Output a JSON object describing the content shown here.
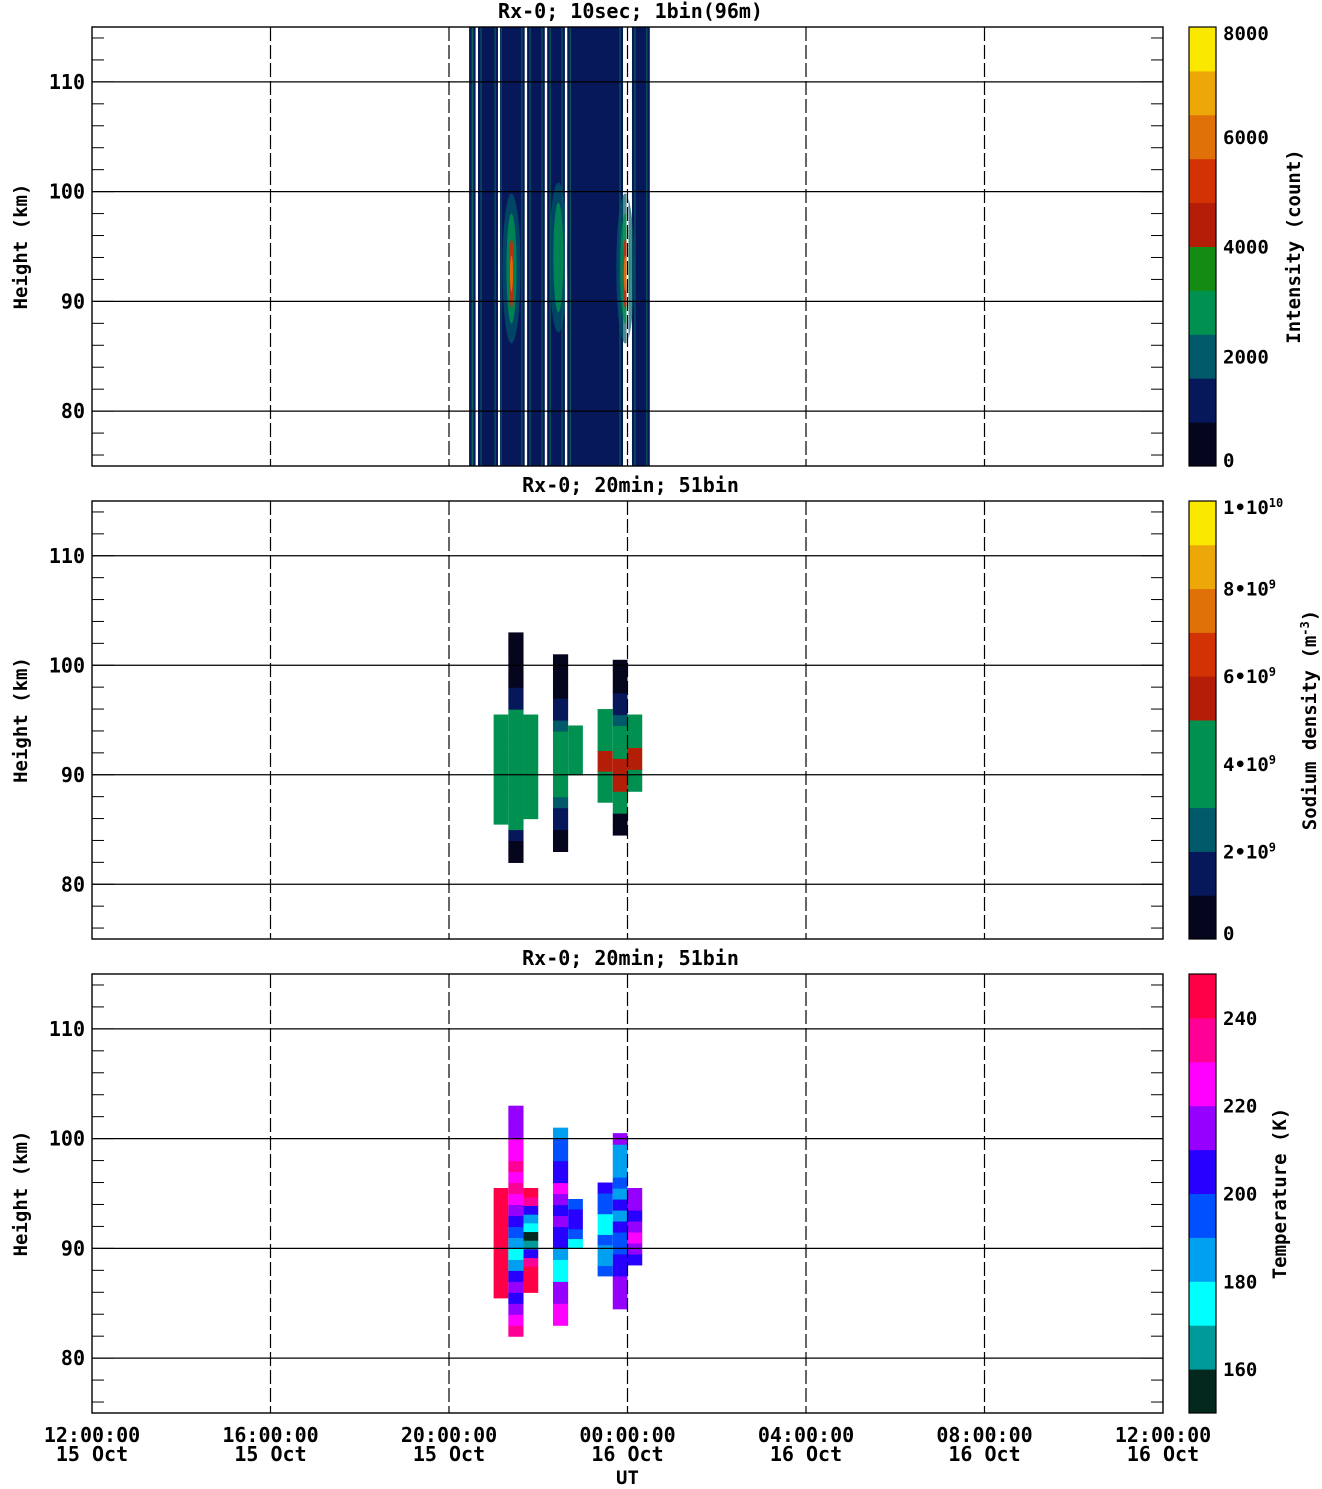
{
  "x_ticks": [
    {
      "time": "12:00:00",
      "date": "15 Oct"
    },
    {
      "time": "16:00:00",
      "date": "15 Oct"
    },
    {
      "time": "20:00:00",
      "date": "15 Oct"
    },
    {
      "time": "00:00:00",
      "date": "16 Oct"
    },
    {
      "time": "04:00:00",
      "date": "16 Oct"
    },
    {
      "time": "08:00:00",
      "date": "16 Oct"
    },
    {
      "time": "12:00:00",
      "date": "16 Oct"
    }
  ],
  "x_label": "UT",
  "chart_data": [
    {
      "type": "heatmap",
      "title": "Rx-0; 10sec; 1bin(96m)",
      "ylabel": "Height (km)",
      "xlim": [
        "15 Oct 12:00:00",
        "16 Oct 12:00:00"
      ],
      "ylim": [
        75,
        115
      ],
      "y_ticks": [
        80,
        90,
        100,
        110
      ],
      "grid": true,
      "colorbar": {
        "label": "Intensity (count)",
        "ticks": [
          "0",
          "2000",
          "4000",
          "6000",
          "8000"
        ],
        "range": [
          0,
          8000
        ],
        "colors": [
          "#05051e",
          "#06175a",
          "#005a6a",
          "#009150",
          "#148c14",
          "#b41e08",
          "#d23204",
          "#e07008",
          "#eca808",
          "#fae800"
        ]
      },
      "coverage_ut_hours": [
        [
          20.45,
          20.6
        ],
        [
          20.65,
          21.1
        ],
        [
          21.1,
          21.7
        ],
        [
          21.75,
          22.15
        ],
        [
          22.2,
          22.6
        ],
        [
          22.65,
          23.9
        ],
        [
          24.1,
          24.5
        ]
      ],
      "coverage_value": 900,
      "peak_regions": [
        {
          "center_ut": 21.4,
          "height_km": 93,
          "peak_value": 5500
        },
        {
          "center_ut": 23.95,
          "height_km": 93,
          "peak_value": 5500
        },
        {
          "center_ut": 22.45,
          "height_km": 94,
          "peak_value": 2500
        }
      ]
    },
    {
      "type": "heatmap",
      "title": "Rx-0; 20min; 51bin",
      "ylabel": "Height (km)",
      "xlim": [
        "15 Oct 12:00:00",
        "16 Oct 12:00:00"
      ],
      "ylim": [
        75,
        115
      ],
      "y_ticks": [
        80,
        90,
        100,
        110
      ],
      "grid": true,
      "colorbar": {
        "label": "Sodium density (m⁻³)",
        "ticks": [
          "0",
          "2•10⁹",
          "4•10⁹",
          "6•10⁹",
          "8•10⁹",
          "1•10¹⁰"
        ],
        "range": [
          0,
          10000000000
        ],
        "colors": [
          "#05051e",
          "#06175a",
          "#005a6a",
          "#009150",
          "#009150",
          "#b41e08",
          "#d23204",
          "#e07008",
          "#eca808",
          "#fae800"
        ]
      },
      "columns": [
        {
          "ut_start": 21.0,
          "ut_end": 21.33,
          "h_bottom": 85.5,
          "h_top": 95.5,
          "densities_e9": [
            3.8,
            3.5,
            3.9,
            4.3,
            4.1,
            3.7,
            4.0,
            4.4,
            3.6,
            3.9,
            4.2,
            3.8,
            3.7
          ]
        },
        {
          "ut_start": 21.33,
          "ut_end": 21.67,
          "h_bottom": 82.0,
          "h_top": 103.0,
          "densities_e9": [
            0.3,
            0.8,
            1.5,
            3.3,
            3.8,
            3.6,
            4.0,
            4.2,
            3.9,
            3.5,
            3.8,
            3.9,
            3.6,
            3.4,
            1.8,
            1.2,
            0.9,
            0.7,
            0.5,
            0.4,
            0.3
          ]
        },
        {
          "ut_start": 21.67,
          "ut_end": 22.0,
          "h_bottom": 86.0,
          "h_top": 95.5,
          "densities_e9": [
            3.6,
            4.0,
            4.3,
            3.7,
            3.8,
            4.2,
            3.9,
            3.6,
            4.1,
            3.8,
            3.5,
            3.7
          ]
        },
        {
          "ut_start": 22.33,
          "ut_end": 22.67,
          "h_bottom": 83.0,
          "h_top": 101.0,
          "densities_e9": [
            0.3,
            0.9,
            1.3,
            1.6,
            2.1,
            3.0,
            3.5,
            4.2,
            4.5,
            4.1,
            3.8,
            2.8,
            1.5,
            1.0,
            0.7,
            0.5,
            0.4,
            0.3
          ]
        },
        {
          "ut_start": 22.67,
          "ut_end": 23.0,
          "h_bottom": 90.0,
          "h_top": 94.5,
          "densities_e9": [
            3.6,
            4.3,
            4.6,
            4.2,
            3.5
          ]
        },
        {
          "ut_start": 23.33,
          "ut_end": 23.67,
          "h_bottom": 87.5,
          "h_top": 96.0,
          "densities_e9": [
            3.3,
            3.8,
            4.5,
            5.1,
            5.4,
            4.6,
            3.9,
            3.5,
            3.2
          ]
        },
        {
          "ut_start": 23.67,
          "ut_end": 24.0,
          "h_bottom": 84.5,
          "h_top": 100.5,
          "densities_e9": [
            0.3,
            0.6,
            3.2,
            3.9,
            5.3,
            5.6,
            5.3,
            4.9,
            4.5,
            3.7,
            2.8,
            1.4,
            1.0,
            0.7,
            0.5,
            0.4
          ]
        },
        {
          "ut_start": 24.0,
          "ut_end": 24.33,
          "h_bottom": 88.5,
          "h_top": 95.5,
          "densities_e9": [
            3.5,
            4.3,
            5.1,
            5.4,
            4.4,
            3.8,
            3.5
          ]
        }
      ]
    },
    {
      "type": "heatmap",
      "title": "Rx-0; 20min; 51bin",
      "ylabel": "Height (km)",
      "xlim": [
        "15 Oct 12:00:00",
        "16 Oct 12:00:00"
      ],
      "ylim": [
        75,
        115
      ],
      "y_ticks": [
        80,
        90,
        100,
        110
      ],
      "grid": true,
      "colorbar": {
        "label": "Temperature (K)",
        "ticks": [
          "160",
          "180",
          "200",
          "220",
          "240"
        ],
        "range": [
          150,
          250
        ],
        "colors": [
          "#05281e",
          "#009a9a",
          "#00ffff",
          "#00a0f0",
          "#0050ff",
          "#2800ff",
          "#9600ff",
          "#ff00ff",
          "#ff0096",
          "#ff0046"
        ]
      },
      "columns": [
        {
          "ut_start": 21.0,
          "ut_end": 21.33,
          "h_bottom": 85.5,
          "h_top": 95.5,
          "temps_K": [
            246,
            244,
            247,
            243,
            245,
            246,
            244,
            247,
            245,
            243,
            246,
            244,
            245
          ]
        },
        {
          "ut_start": 21.33,
          "ut_end": 21.67,
          "h_bottom": 82.0,
          "h_top": 103.0,
          "temps_K": [
            233,
            226,
            215,
            205,
            210,
            203,
            185,
            175,
            180,
            195,
            205,
            210,
            225,
            232,
            228,
            236,
            225,
            222,
            218,
            215,
            212
          ]
        },
        {
          "ut_start": 21.67,
          "ut_end": 22.0,
          "h_bottom": 86.0,
          "h_top": 95.5,
          "temps_K": [
            244,
            242,
            245,
            235,
            200,
            165,
            158,
            175,
            185,
            200,
            230,
            240
          ]
        },
        {
          "ut_start": 22.33,
          "ut_end": 22.67,
          "h_bottom": 83.0,
          "h_top": 101.0,
          "temps_K": [
            222,
            225,
            218,
            215,
            178,
            172,
            185,
            205,
            200,
            210,
            205,
            215,
            220,
            208,
            202,
            190,
            195,
            186
          ]
        },
        {
          "ut_start": 22.67,
          "ut_end": 23.0,
          "h_bottom": 90.0,
          "h_top": 94.5,
          "temps_K": [
            175,
            192,
            200,
            205,
            195
          ]
        },
        {
          "ut_start": 23.33,
          "ut_end": 23.67,
          "h_bottom": 87.5,
          "h_top": 96.0,
          "temps_K": [
            192,
            188,
            186,
            190,
            178,
            176,
            190,
            195,
            200
          ]
        },
        {
          "ut_start": 23.67,
          "ut_end": 24.0,
          "h_bottom": 84.5,
          "h_top": 100.5,
          "temps_K": [
            215,
            212,
            218,
            205,
            200,
            196,
            190,
            202,
            188,
            200,
            185,
            190,
            188,
            184,
            186,
            210
          ]
        },
        {
          "ut_start": 24.0,
          "ut_end": 24.33,
          "h_bottom": 88.5,
          "h_top": 95.5,
          "temps_K": [
            205,
            210,
            220,
            215,
            205,
            215,
            210
          ]
        }
      ]
    }
  ]
}
